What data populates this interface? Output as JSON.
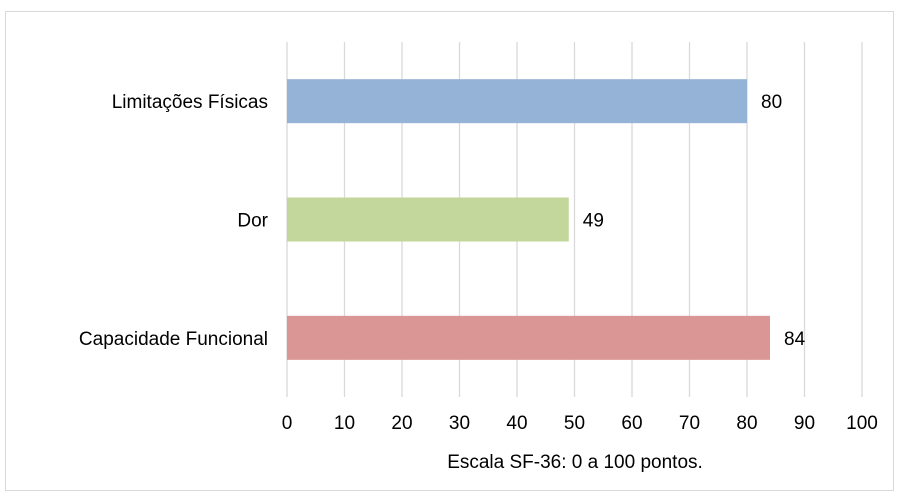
{
  "chart_data": {
    "type": "bar",
    "orientation": "horizontal",
    "categories": [
      "Limitações Físicas",
      "Dor",
      "Capacidade Funcional"
    ],
    "values": [
      80,
      49,
      84
    ],
    "data_labels": [
      "80",
      "49",
      "84"
    ],
    "colors": [
      "#95b3d7",
      "#c3d69b",
      "#d99694"
    ],
    "title": "",
    "xlabel": "Escala SF-36: 0 a 100 pontos.",
    "ylabel": "",
    "xlim": [
      0,
      100
    ],
    "xticks": [
      0,
      10,
      20,
      30,
      40,
      50,
      60,
      70,
      80,
      90,
      100
    ],
    "xtick_labels": [
      "0",
      "10",
      "20",
      "30",
      "40",
      "50",
      "60",
      "70",
      "80",
      "90",
      "100"
    ],
    "grid": "vertical",
    "legend": "none"
  }
}
